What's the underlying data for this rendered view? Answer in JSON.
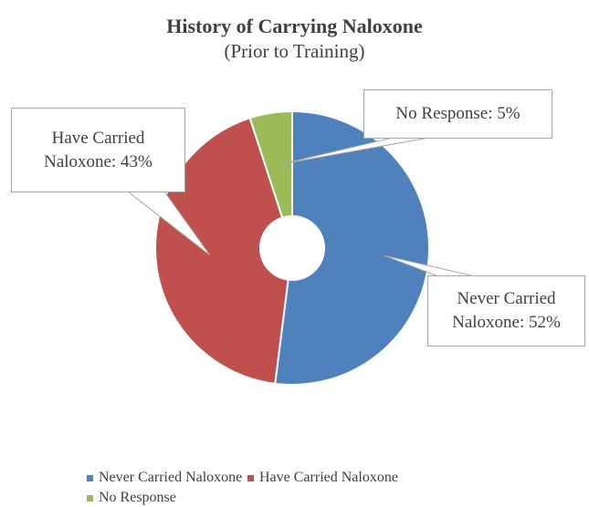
{
  "chart_data": {
    "type": "doughnut",
    "title": "History of Carrying Naloxone",
    "subtitle": "(Prior to Training)",
    "categories": [
      "Never Carried Naloxone",
      "Have Carried Naloxone",
      "No Response"
    ],
    "values": [
      52,
      43,
      5
    ],
    "value_labels": [
      "Never Carried Naloxone: 52%",
      "Have Carried Naloxone: 43%",
      "No Response: 5%"
    ],
    "colors": [
      "#4f81bd",
      "#c0504d",
      "#9bbb59"
    ],
    "legend": "bottom"
  }
}
